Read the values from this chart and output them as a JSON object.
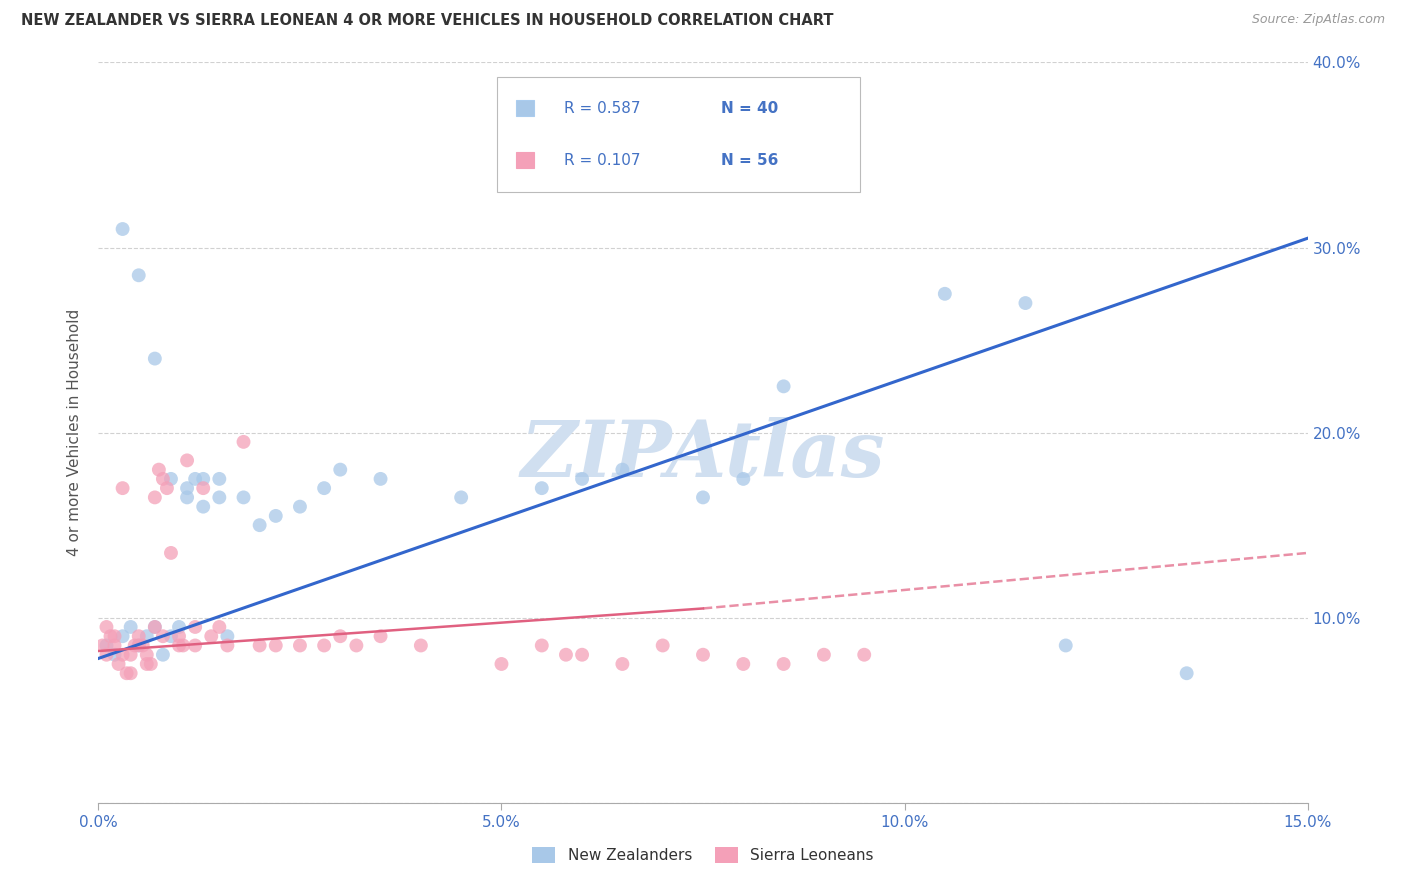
{
  "title": "NEW ZEALANDER VS SIERRA LEONEAN 4 OR MORE VEHICLES IN HOUSEHOLD CORRELATION CHART",
  "source": "Source: ZipAtlas.com",
  "ylabel": "4 or more Vehicles in Household",
  "xlim": [
    0.0,
    15.0
  ],
  "ylim": [
    0.0,
    40.0
  ],
  "legend_nz": "New Zealanders",
  "legend_sl": "Sierra Leoneans",
  "legend_r_nz": "0.587",
  "legend_n_nz": "40",
  "legend_r_sl": "0.107",
  "legend_n_sl": "56",
  "color_nz": "#a8c8e8",
  "color_sl": "#f4a0b8",
  "color_trend_nz": "#3366cc",
  "color_trend_sl": "#e06080",
  "watermark": "ZIPAtlas",
  "watermark_color": "#d0dff0",
  "background_color": "#ffffff",
  "nz_x": [
    0.1,
    0.2,
    0.3,
    0.4,
    0.5,
    0.6,
    0.7,
    0.8,
    0.9,
    1.0,
    1.1,
    1.2,
    1.3,
    1.5,
    1.6,
    1.8,
    2.0,
    2.2,
    2.5,
    3.0,
    3.5,
    5.5,
    6.5,
    7.5,
    8.5,
    10.5,
    12.0,
    13.5,
    0.3,
    0.5,
    0.7,
    0.9,
    1.1,
    1.3,
    1.5,
    2.8,
    4.5,
    6.0,
    8.0,
    11.5
  ],
  "nz_y": [
    8.5,
    8.0,
    9.0,
    9.5,
    8.5,
    9.0,
    9.5,
    8.0,
    9.0,
    9.5,
    16.5,
    17.5,
    16.0,
    16.5,
    9.0,
    16.5,
    15.0,
    15.5,
    16.0,
    18.0,
    17.5,
    17.0,
    18.0,
    16.5,
    22.5,
    27.5,
    8.5,
    7.0,
    31.0,
    28.5,
    24.0,
    17.5,
    17.0,
    17.5,
    17.5,
    17.0,
    16.5,
    17.5,
    17.5,
    27.0
  ],
  "sl_x": [
    0.05,
    0.1,
    0.15,
    0.2,
    0.25,
    0.3,
    0.35,
    0.4,
    0.45,
    0.5,
    0.55,
    0.6,
    0.65,
    0.7,
    0.75,
    0.8,
    0.85,
    0.9,
    1.0,
    1.05,
    1.1,
    1.2,
    1.3,
    1.5,
    1.6,
    1.8,
    2.0,
    2.2,
    2.5,
    2.8,
    3.0,
    3.5,
    4.0,
    5.0,
    5.5,
    6.0,
    6.5,
    7.0,
    7.5,
    8.5,
    9.0,
    9.5,
    0.1,
    0.2,
    0.3,
    0.4,
    0.5,
    0.6,
    0.7,
    0.8,
    1.0,
    1.2,
    1.4,
    3.2,
    5.8,
    8.0
  ],
  "sl_y": [
    8.5,
    8.0,
    9.0,
    8.5,
    7.5,
    8.0,
    7.0,
    7.0,
    8.5,
    9.0,
    8.5,
    7.5,
    7.5,
    16.5,
    18.0,
    17.5,
    17.0,
    13.5,
    9.0,
    8.5,
    18.5,
    9.5,
    17.0,
    9.5,
    8.5,
    19.5,
    8.5,
    8.5,
    8.5,
    8.5,
    9.0,
    9.0,
    8.5,
    7.5,
    8.5,
    8.0,
    7.5,
    8.5,
    8.0,
    7.5,
    8.0,
    8.0,
    9.5,
    9.0,
    17.0,
    8.0,
    8.5,
    8.0,
    9.5,
    9.0,
    8.5,
    8.5,
    9.0,
    8.5,
    8.0,
    7.5
  ],
  "nz_trend_x0": 0.0,
  "nz_trend_y0": 7.8,
  "nz_trend_x1": 15.0,
  "nz_trend_y1": 30.5,
  "sl_trend_x0": 0.0,
  "sl_trend_y0": 8.2,
  "sl_trend_x1": 7.5,
  "sl_trend_y1": 10.5,
  "sl_dash_x0": 7.5,
  "sl_dash_y0": 10.5,
  "sl_dash_x1": 15.0,
  "sl_dash_y1": 13.5
}
